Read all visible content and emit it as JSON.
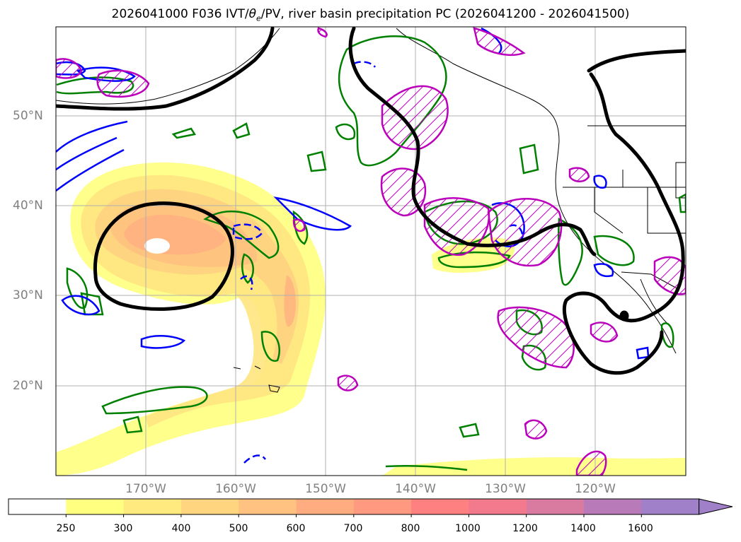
{
  "title": {
    "prefix": "2026041000 F036 IVT/",
    "theta": "θ",
    "theta_sub": "e",
    "suffix": "/PV, river basin precipitation PC (2026041200 - 2026041500)"
  },
  "map": {
    "projection": "PlateCarree",
    "lon_range": [
      -180,
      -110
    ],
    "lat_range": [
      10,
      60
    ],
    "grid": true,
    "lat_labels": [
      {
        "value": 50,
        "text": "50°N"
      },
      {
        "value": 40,
        "text": "40°N"
      },
      {
        "value": 30,
        "text": "30°N"
      },
      {
        "value": 20,
        "text": "20°N"
      }
    ],
    "lon_labels": [
      {
        "value": -170,
        "text": "170°W"
      },
      {
        "value": -160,
        "text": "160°W"
      },
      {
        "value": -150,
        "text": "150°W"
      },
      {
        "value": -140,
        "text": "140°W"
      },
      {
        "value": -130,
        "text": "130°W"
      },
      {
        "value": -120,
        "text": "120°W"
      }
    ]
  },
  "colorbar": {
    "levels": [
      "250",
      "300",
      "400",
      "500",
      "600",
      "700",
      "800",
      "1000",
      "1200",
      "1400",
      "1600"
    ],
    "colors": [
      "#ffffff",
      "#ffff80",
      "#ffea80",
      "#ffd580",
      "#ffc280",
      "#ffad80",
      "#ff9a80",
      "#ff8080",
      "#f37a8c",
      "#d97aa0",
      "#b87ab8",
      "#a080c8"
    ],
    "extend": "max"
  },
  "colors": {
    "pv_contour": "#000000",
    "theta_e_contour": "#008000",
    "blue_contour": "#0000ff",
    "precip_pc": "#bb00bb",
    "coastline": "#000000",
    "grid": "#b0b0b0"
  }
}
